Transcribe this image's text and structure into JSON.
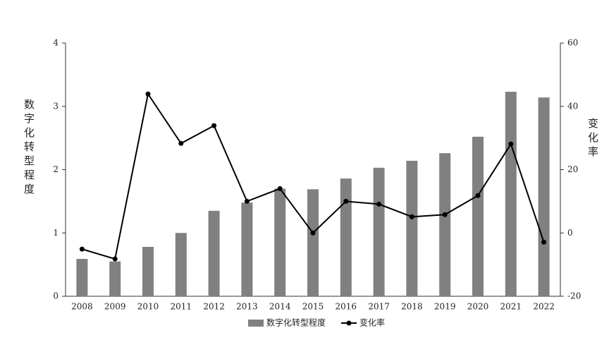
{
  "chart_data": {
    "type": "bar-line",
    "categories": [
      "2008",
      "2009",
      "2010",
      "2011",
      "2012",
      "2013",
      "2014",
      "2015",
      "2016",
      "2017",
      "2018",
      "2019",
      "2020",
      "2021",
      "2022"
    ],
    "series": [
      {
        "name": "数字化转型程度",
        "type": "bar",
        "color": "#808080",
        "values": [
          0.59,
          0.55,
          0.78,
          1.0,
          1.35,
          1.48,
          1.7,
          1.69,
          1.86,
          2.03,
          2.14,
          2.26,
          2.52,
          3.23,
          3.14
        ]
      },
      {
        "name": "变化率",
        "type": "line",
        "axis": "y2",
        "color": "#000000",
        "values": [
          -5.1,
          -8.2,
          43.9,
          28.3,
          33.9,
          10.0,
          14.0,
          0,
          10.0,
          9.1,
          5.1,
          5.8,
          11.8,
          28.1,
          -2.9
        ]
      }
    ],
    "ylabel": "数字化转型程度",
    "y2label": "变化率",
    "ylim": [
      0,
      4
    ],
    "yticks": [
      0,
      1,
      2,
      3,
      4
    ],
    "y2lim": [
      -20,
      60
    ],
    "y2ticks": [
      -20,
      0,
      20,
      40,
      60
    ],
    "grid": false,
    "legend": "bottom"
  }
}
